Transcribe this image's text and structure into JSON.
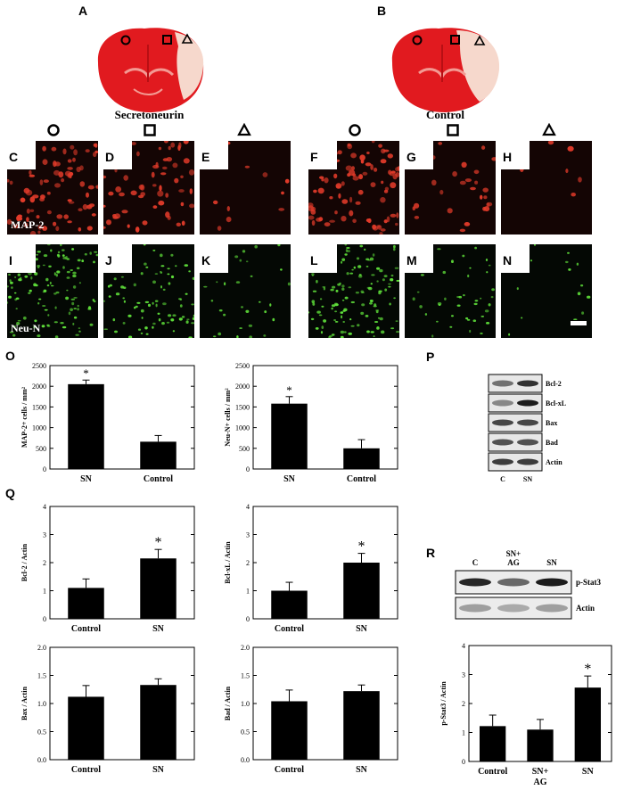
{
  "panel_letters": {
    "A": "A",
    "B": "B",
    "C": "C",
    "D": "D",
    "E": "E",
    "F": "F",
    "G": "G",
    "H": "H",
    "I": "I",
    "J": "J",
    "K": "K",
    "L": "L",
    "M": "M",
    "N": "N",
    "O": "O",
    "P": "P",
    "Q": "Q",
    "R": "R"
  },
  "brains": {
    "left_label": "Secretoneurin",
    "right_label": "Control"
  },
  "stains": {
    "row1": "MAP-2",
    "row2": "Neu-N"
  },
  "colors": {
    "brain": "#e11a1f",
    "infarct": "#f6d8cc",
    "map2": "#e33b2a",
    "neun": "#5fe03a",
    "bar": "#000000"
  },
  "chart_data": [
    {
      "id": "O1",
      "type": "bar",
      "ylabel": "MAP-2+ cells / mm²",
      "categories": [
        "SN",
        "Control"
      ],
      "values": [
        2050,
        660
      ],
      "errors": [
        100,
        150
      ],
      "ylim": [
        0,
        2500
      ],
      "yticks": [
        "0",
        "500",
        "1000",
        "1500",
        "2000",
        "2500"
      ],
      "yticks_n": [
        0,
        500,
        1000,
        1500,
        2000,
        2500
      ],
      "star": "*",
      "star_index": 0
    },
    {
      "id": "O2",
      "type": "bar",
      "ylabel": "Neu-N+ cells / mm²",
      "categories": [
        "SN",
        "Control"
      ],
      "values": [
        1580,
        500
      ],
      "errors": [
        170,
        210
      ],
      "ylim": [
        0,
        2500
      ],
      "yticks": [
        "0",
        "500",
        "1000",
        "1500",
        "2000",
        "2500"
      ],
      "yticks_n": [
        0,
        500,
        1000,
        1500,
        2000,
        2500
      ],
      "star": "*",
      "star_index": 0
    },
    {
      "id": "Q1",
      "type": "bar",
      "ylabel": "Bcl-2 / Actin",
      "categories": [
        "Control",
        "SN"
      ],
      "values": [
        1.1,
        2.15
      ],
      "errors": [
        0.32,
        0.32
      ],
      "ylim": [
        0,
        4
      ],
      "yticks": [
        "0",
        "1",
        "2",
        "3",
        "4"
      ],
      "yticks_n": [
        0,
        1,
        2,
        3,
        4
      ],
      "star": "*",
      "star_index": 1
    },
    {
      "id": "Q2",
      "type": "bar",
      "ylabel": "Bcl-xL / Actin",
      "categories": [
        "Control",
        "SN"
      ],
      "values": [
        1.0,
        2.0
      ],
      "errors": [
        0.3,
        0.33
      ],
      "ylim": [
        0,
        4
      ],
      "yticks": [
        "0",
        "1",
        "2",
        "3",
        "4"
      ],
      "yticks_n": [
        0,
        1,
        2,
        3,
        4
      ],
      "star": "*",
      "star_index": 1
    },
    {
      "id": "Q3",
      "type": "bar",
      "ylabel": "Bax / Actin",
      "categories": [
        "Control",
        "SN"
      ],
      "values": [
        1.12,
        1.33
      ],
      "errors": [
        0.2,
        0.11
      ],
      "ylim": [
        0,
        2
      ],
      "yticks": [
        "0.0",
        "0.5",
        "1.0",
        "1.5",
        "2.0"
      ],
      "yticks_n": [
        0,
        0.5,
        1,
        1.5,
        2
      ],
      "star": "",
      "star_index": -1
    },
    {
      "id": "Q4",
      "type": "bar",
      "ylabel": "Bad / Actin",
      "categories": [
        "Control",
        "SN"
      ],
      "values": [
        1.04,
        1.22
      ],
      "errors": [
        0.2,
        0.11
      ],
      "ylim": [
        0,
        2
      ],
      "yticks": [
        "0.0",
        "0.5",
        "1.0",
        "1.5",
        "2.0"
      ],
      "yticks_n": [
        0,
        0.5,
        1,
        1.5,
        2
      ],
      "star": "",
      "star_index": -1
    },
    {
      "id": "R",
      "type": "bar",
      "ylabel": "p-Stat3 / Actin",
      "categories": [
        "Control",
        "SN+",
        "SN"
      ],
      "categories_line2": [
        "",
        "AG",
        ""
      ],
      "values": [
        1.22,
        1.1,
        2.55
      ],
      "errors": [
        0.38,
        0.35,
        0.4
      ],
      "ylim": [
        0,
        4
      ],
      "yticks": [
        "0",
        "1",
        "2",
        "3",
        "4"
      ],
      "yticks_n": [
        0,
        1,
        2,
        3,
        4
      ],
      "star": "*",
      "star_index": 2
    }
  ],
  "blot_P": {
    "bands": [
      "Bcl-2",
      "Bcl-xL",
      "Bax",
      "Bad",
      "Actin"
    ],
    "lanes": [
      "C",
      "SN"
    ]
  },
  "blot_R": {
    "bands": [
      "p-Stat3",
      "Actin"
    ],
    "lanes": [
      "C",
      "SN+",
      "AG",
      "SN"
    ]
  }
}
